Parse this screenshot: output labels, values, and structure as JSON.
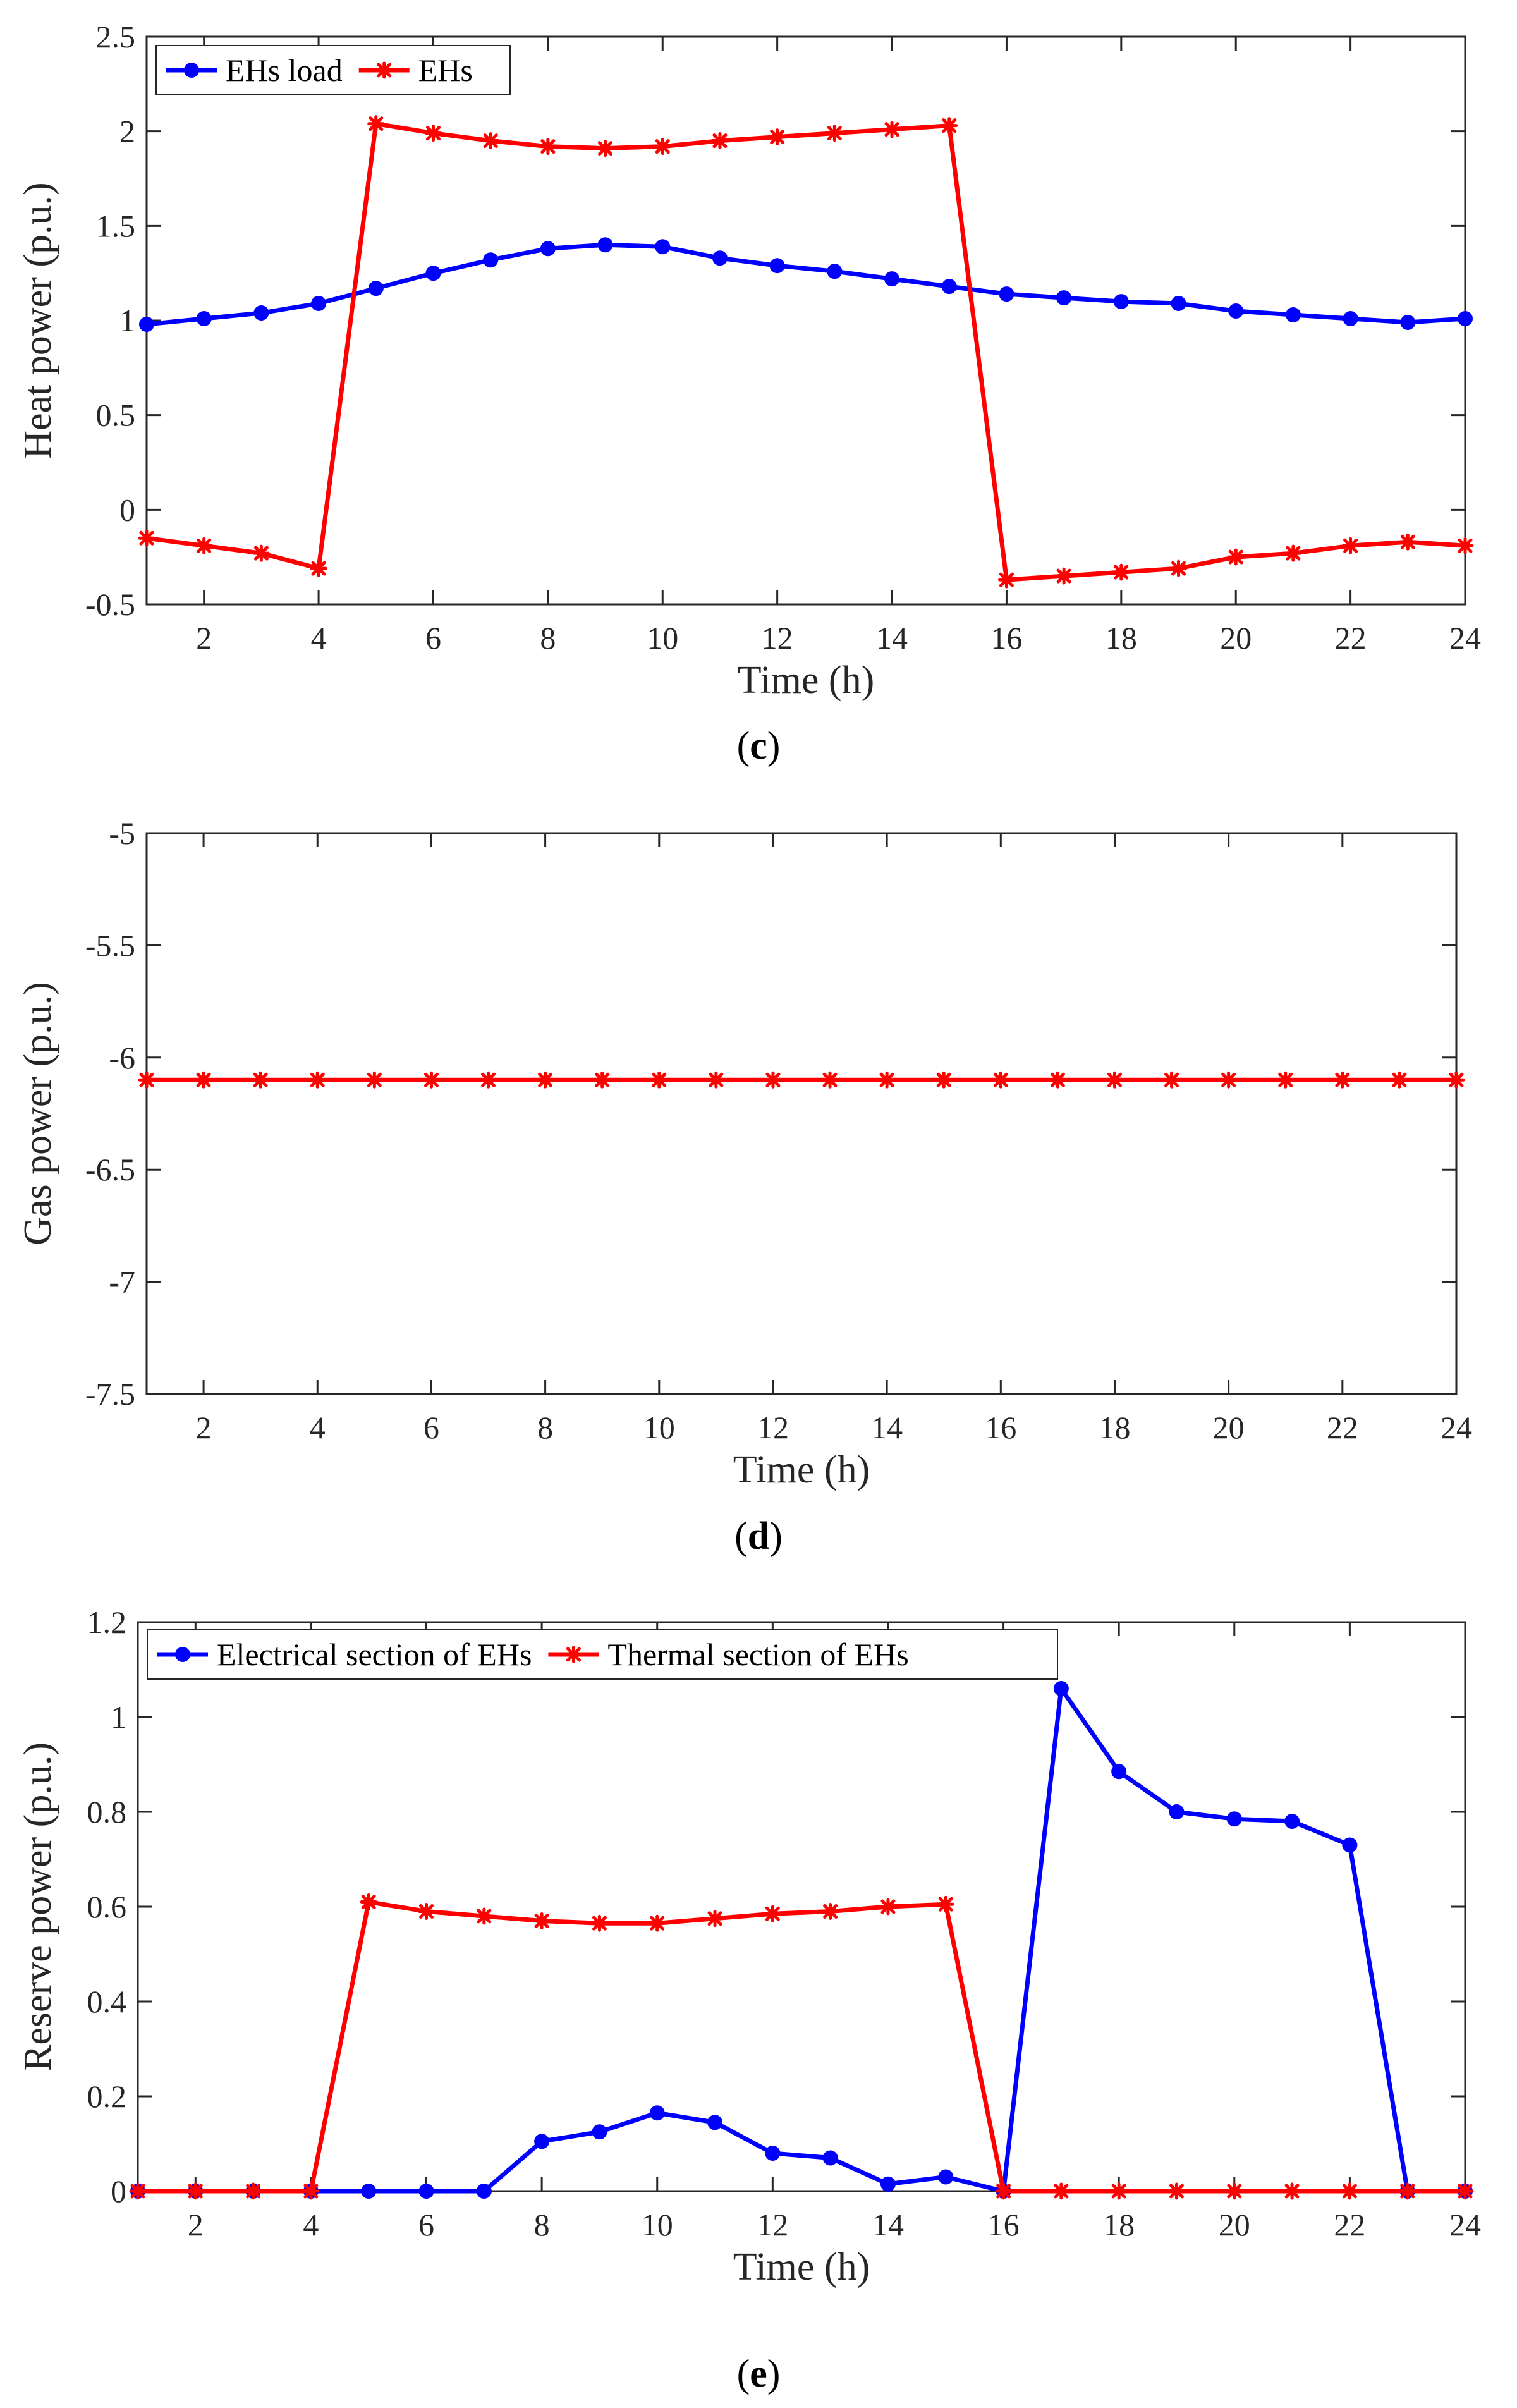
{
  "chart_data": [
    {
      "type": "line",
      "caption": "c",
      "xlabel": "Time (h)",
      "ylabel": "Heat power (p.u.)",
      "xlim": [
        1,
        24
      ],
      "ylim": [
        -0.5,
        2.5
      ],
      "xticks": [
        2,
        4,
        6,
        8,
        10,
        12,
        14,
        16,
        18,
        20,
        22,
        24
      ],
      "xtick_labels": [
        "2",
        "4",
        "6",
        "8",
        "10",
        "12",
        "14",
        "16",
        "18",
        "20",
        "22",
        "24"
      ],
      "yticks": [
        -0.5,
        0,
        0.5,
        1,
        1.5,
        2,
        2.5
      ],
      "ytick_labels": [
        "-0.5",
        "0",
        "0.5",
        "1",
        "1.5",
        "2",
        "2.5"
      ],
      "legend_position": "top-left",
      "x": [
        1,
        2,
        3,
        4,
        5,
        6,
        7,
        8,
        9,
        10,
        11,
        12,
        13,
        14,
        15,
        16,
        17,
        18,
        19,
        20,
        21,
        22,
        23,
        24
      ],
      "series": [
        {
          "name": "EHs load",
          "color": "#0000ff",
          "marker": "circle",
          "values": [
            0.98,
            1.01,
            1.04,
            1.09,
            1.17,
            1.25,
            1.32,
            1.38,
            1.4,
            1.39,
            1.33,
            1.29,
            1.26,
            1.22,
            1.18,
            1.14,
            1.12,
            1.1,
            1.09,
            1.05,
            1.03,
            1.01,
            0.99,
            1.01
          ]
        },
        {
          "name": "EHs",
          "color": "#ff0000",
          "marker": "asterisk",
          "values": [
            -0.15,
            -0.19,
            -0.23,
            -0.31,
            2.04,
            1.99,
            1.95,
            1.92,
            1.91,
            1.92,
            1.95,
            1.97,
            1.99,
            2.01,
            2.03,
            -0.37,
            -0.35,
            -0.33,
            -0.31,
            -0.25,
            -0.23,
            -0.19,
            -0.17,
            -0.19
          ]
        }
      ]
    },
    {
      "type": "line",
      "caption": "d",
      "xlabel": "Time (h)",
      "ylabel": "Gas power (p.u.)",
      "xlim": [
        1,
        24
      ],
      "ylim": [
        -7.5,
        -5
      ],
      "xticks": [
        2,
        4,
        6,
        8,
        10,
        12,
        14,
        16,
        18,
        20,
        22,
        24
      ],
      "xtick_labels": [
        "2",
        "4",
        "6",
        "8",
        "10",
        "12",
        "14",
        "16",
        "18",
        "20",
        "22",
        "24"
      ],
      "yticks": [
        -7.5,
        -7,
        -6.5,
        -6,
        -5.5,
        -5
      ],
      "ytick_labels": [
        "-7.5",
        "-7",
        "-6.5",
        "-6",
        "-5.5",
        "-5"
      ],
      "legend_position": "none",
      "x": [
        1,
        2,
        3,
        4,
        5,
        6,
        7,
        8,
        9,
        10,
        11,
        12,
        13,
        14,
        15,
        16,
        17,
        18,
        19,
        20,
        21,
        22,
        23,
        24
      ],
      "series": [
        {
          "name": "Gas power",
          "color": "#ff0000",
          "marker": "asterisk",
          "values": [
            -6.1,
            -6.1,
            -6.1,
            -6.1,
            -6.1,
            -6.1,
            -6.1,
            -6.1,
            -6.1,
            -6.1,
            -6.1,
            -6.1,
            -6.1,
            -6.1,
            -6.1,
            -6.1,
            -6.1,
            -6.1,
            -6.1,
            -6.1,
            -6.1,
            -6.1,
            -6.1,
            -6.1
          ]
        }
      ]
    },
    {
      "type": "line",
      "caption": "e",
      "xlabel": "Time (h)",
      "ylabel": "Reserve power (p.u.)",
      "xlim": [
        1,
        24
      ],
      "ylim": [
        0,
        1.2
      ],
      "xticks": [
        2,
        4,
        6,
        8,
        10,
        12,
        14,
        16,
        18,
        20,
        22,
        24
      ],
      "xtick_labels": [
        "2",
        "4",
        "6",
        "8",
        "10",
        "12",
        "14",
        "16",
        "18",
        "20",
        "22",
        "24"
      ],
      "yticks": [
        0,
        0.2,
        0.4,
        0.6,
        0.8,
        1,
        1.2
      ],
      "ytick_labels": [
        "0",
        "0.2",
        "0.4",
        "0.6",
        "0.8",
        "1",
        "1.2"
      ],
      "legend_position": "top-left",
      "x": [
        1,
        2,
        3,
        4,
        5,
        6,
        7,
        8,
        9,
        10,
        11,
        12,
        13,
        14,
        15,
        16,
        17,
        18,
        19,
        20,
        21,
        22,
        23,
        24
      ],
      "series": [
        {
          "name": "Electrical section of EHs",
          "color": "#0000ff",
          "marker": "circle",
          "values": [
            0,
            0,
            0,
            0,
            0,
            0,
            0,
            0.105,
            0.125,
            0.165,
            0.145,
            0.08,
            0.07,
            0.015,
            0.03,
            0,
            1.06,
            0.885,
            0.8,
            0.785,
            0.78,
            0.73,
            0,
            0
          ]
        },
        {
          "name": "Thermal  section of EHs",
          "color": "#ff0000",
          "marker": "asterisk",
          "values": [
            0,
            0,
            0,
            0,
            0.61,
            0.59,
            0.58,
            0.57,
            0.565,
            0.565,
            0.575,
            0.585,
            0.59,
            0.6,
            0.605,
            0,
            0,
            0,
            0,
            0,
            0,
            0,
            0,
            0
          ]
        }
      ]
    }
  ]
}
